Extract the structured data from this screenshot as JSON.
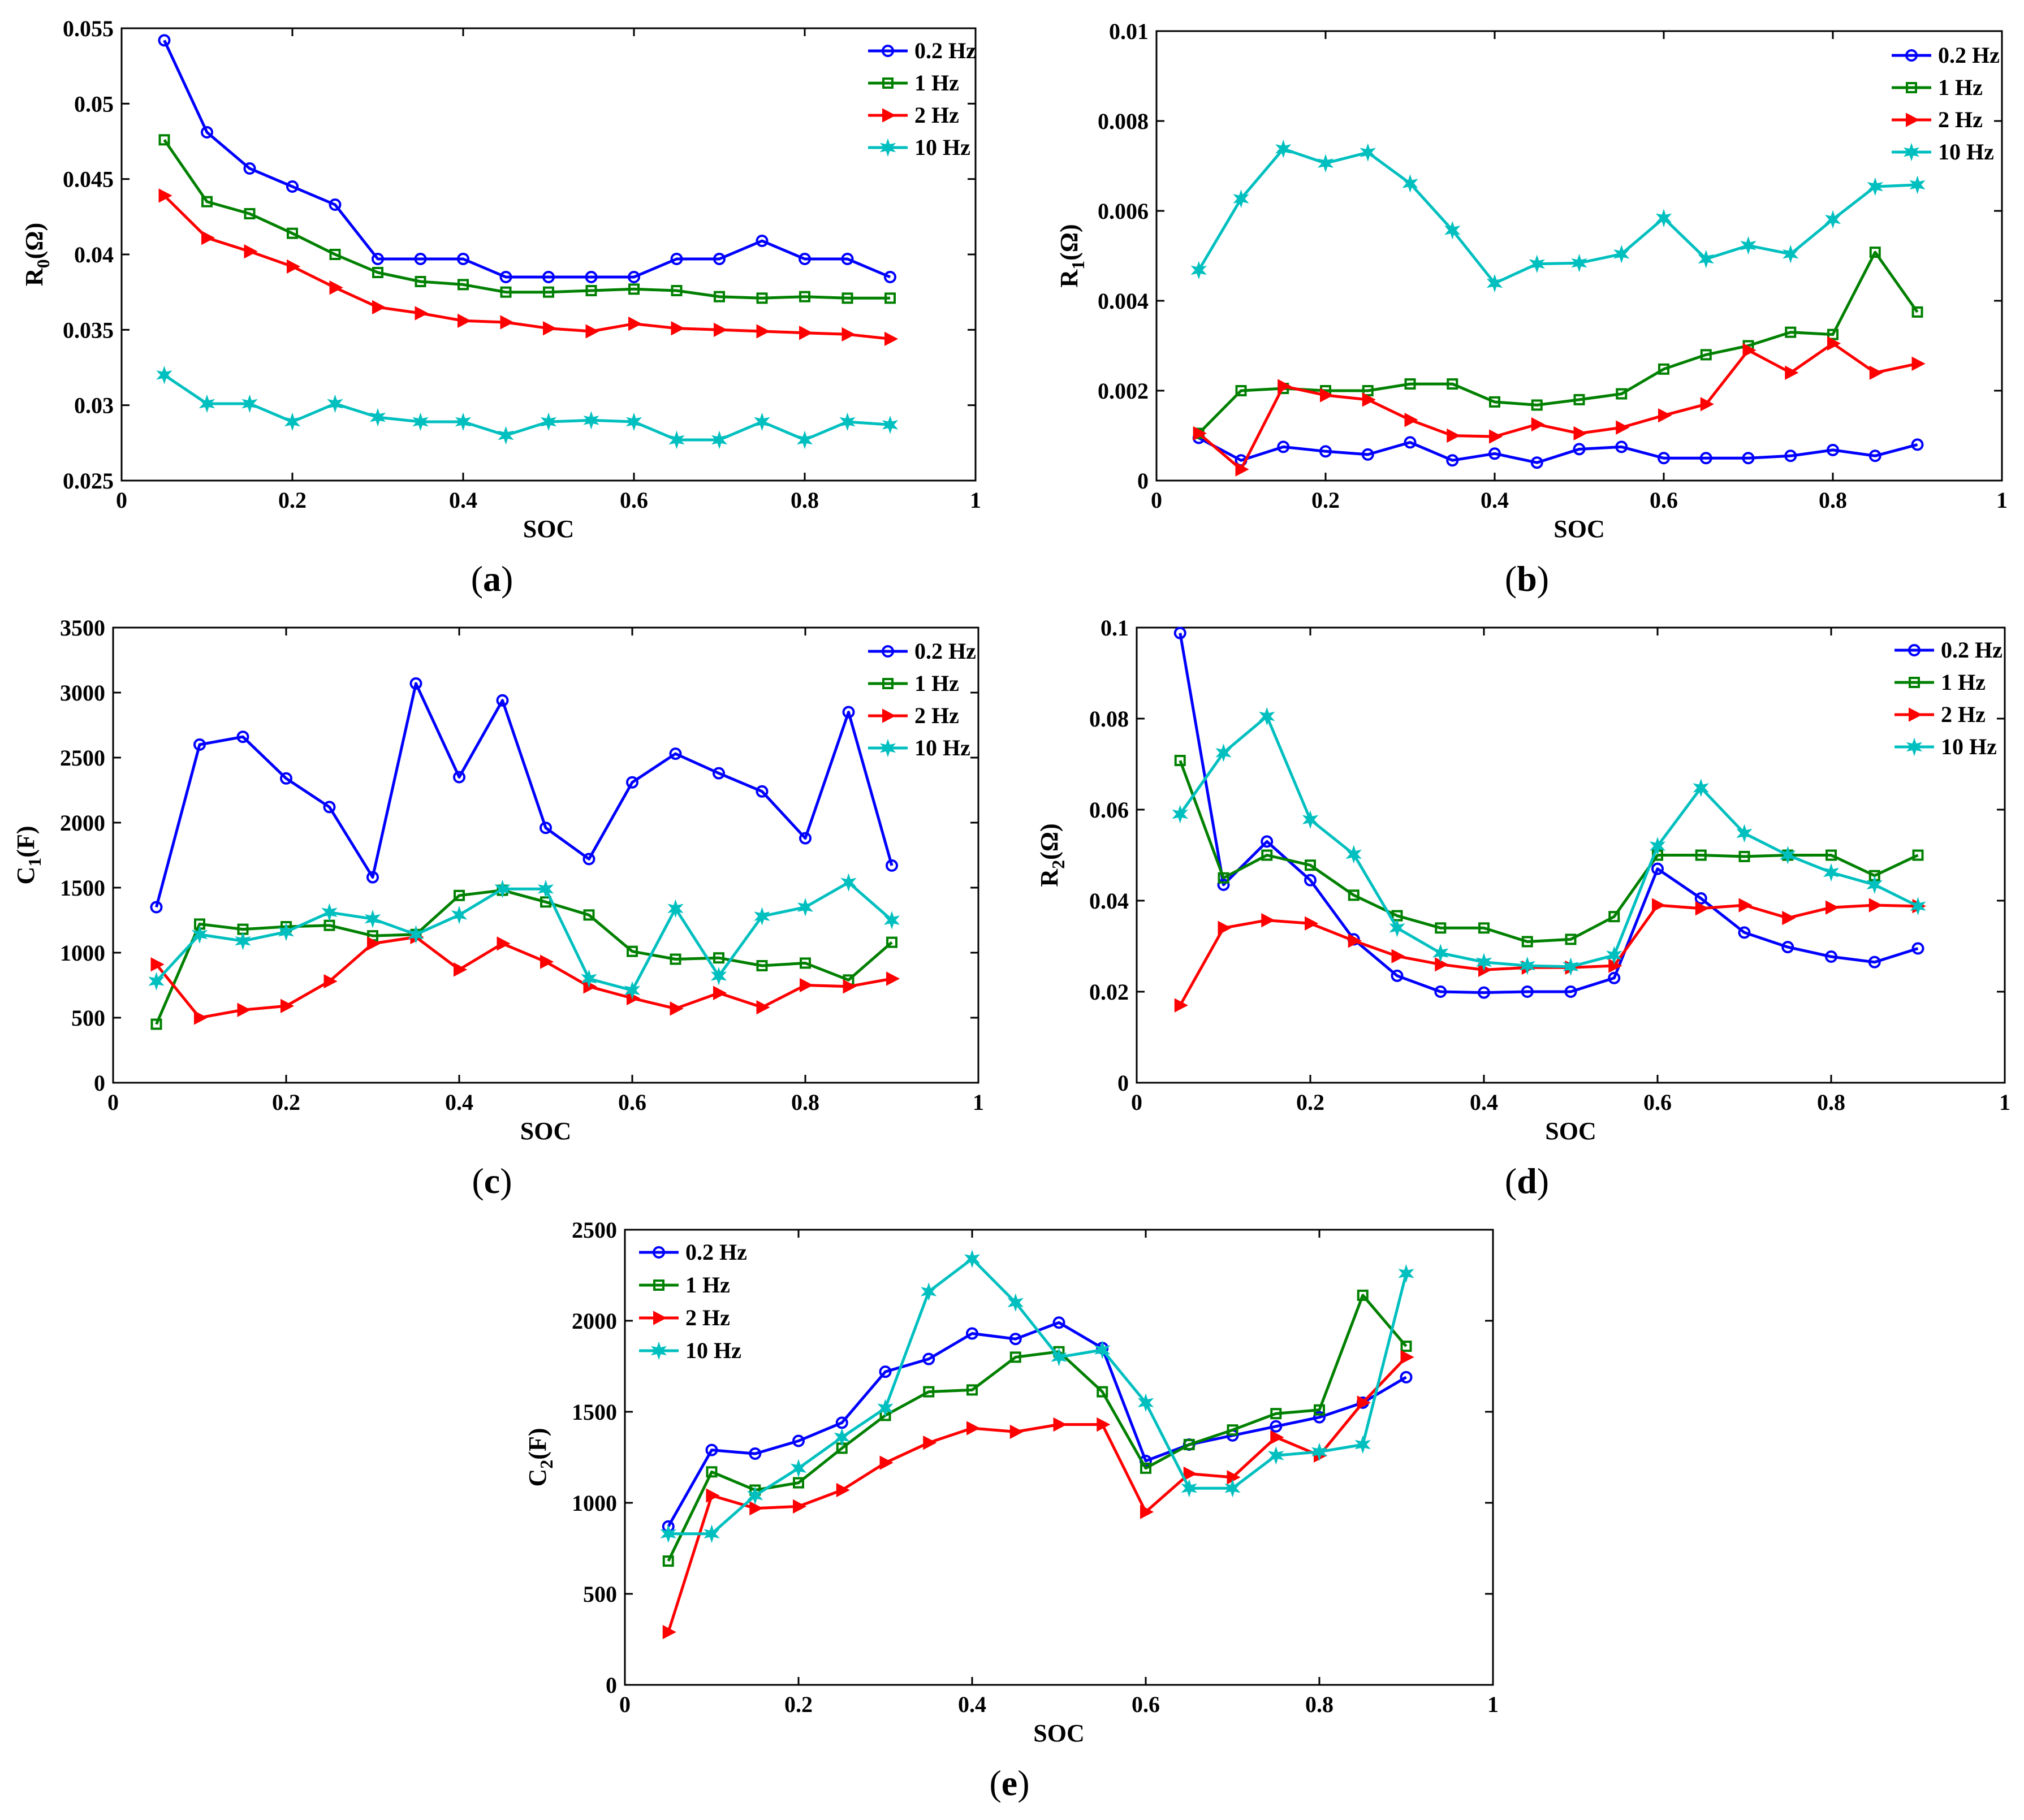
{
  "chart_data": [
    {
      "type": "line",
      "panel": "(a)",
      "caption_letter": "a",
      "xlabel": "SOC",
      "ylabel": "R0(Ω)",
      "ylabel_main": "R",
      "ylabel_sub": "0",
      "ylabel_unit": "(Ω)",
      "xlim": [
        0,
        1
      ],
      "ylim": [
        0.025,
        0.055
      ],
      "xticks": [
        0,
        0.2,
        0.4,
        0.6,
        0.8,
        1
      ],
      "xtick_labels": [
        "0",
        "0.2",
        "0.4",
        "0.6",
        "0.8",
        "1"
      ],
      "yticks": [
        0.025,
        0.03,
        0.035,
        0.04,
        0.045,
        0.05,
        0.055
      ],
      "ytick_labels": [
        "0.025",
        "0.03",
        "0.035",
        "0.04",
        "0.045",
        "0.05",
        "0.055"
      ],
      "legend_position": "top-right",
      "x": [
        0.05,
        0.1,
        0.15,
        0.2,
        0.25,
        0.3,
        0.35,
        0.4,
        0.45,
        0.5,
        0.55,
        0.6,
        0.65,
        0.7,
        0.75,
        0.8,
        0.85,
        0.9
      ],
      "series": [
        {
          "name": "0.2 Hz",
          "color": "#0000ff",
          "marker": "circle",
          "values": [
            0.0542,
            0.0481,
            0.0457,
            0.0445,
            0.0433,
            0.0397,
            0.0397,
            0.0397,
            0.0385,
            0.0385,
            0.0385,
            0.0385,
            0.0397,
            0.0397,
            0.0409,
            0.0397,
            0.0397,
            0.0385
          ]
        },
        {
          "name": "1 Hz",
          "color": "#008000",
          "marker": "square",
          "values": [
            0.0476,
            0.0435,
            0.0427,
            0.0414,
            0.04,
            0.0388,
            0.0382,
            0.038,
            0.0375,
            0.0375,
            0.0376,
            0.0377,
            0.0376,
            0.0372,
            0.0371,
            0.0372,
            0.0371,
            0.0371
          ]
        },
        {
          "name": "2 Hz",
          "color": "#ff0000",
          "marker": "triangle-right",
          "values": [
            0.0439,
            0.0411,
            0.0402,
            0.0392,
            0.0378,
            0.0365,
            0.0361,
            0.0356,
            0.0355,
            0.0351,
            0.0349,
            0.0354,
            0.0351,
            0.035,
            0.0349,
            0.0348,
            0.0347,
            0.0344
          ]
        },
        {
          "name": "10 Hz",
          "color": "#00bfbf",
          "marker": "star",
          "values": [
            0.032,
            0.0301,
            0.0301,
            0.0289,
            0.0301,
            0.0292,
            0.0289,
            0.0289,
            0.028,
            0.0289,
            0.029,
            0.0289,
            0.0277,
            0.0277,
            0.0289,
            0.0277,
            0.0289,
            0.0287
          ]
        }
      ]
    },
    {
      "type": "line",
      "panel": "(b)",
      "caption_letter": "b",
      "xlabel": "SOC",
      "ylabel": "R1(Ω)",
      "ylabel_main": "R",
      "ylabel_sub": "1",
      "ylabel_unit": "(Ω)",
      "xlim": [
        0,
        1
      ],
      "ylim": [
        0,
        0.01
      ],
      "xticks": [
        0,
        0.2,
        0.4,
        0.6,
        0.8,
        1
      ],
      "xtick_labels": [
        "0",
        "0.2",
        "0.4",
        "0.6",
        "0.8",
        "1"
      ],
      "yticks": [
        0,
        0.002,
        0.004,
        0.006,
        0.008,
        0.01
      ],
      "ytick_labels": [
        "0",
        "0.002",
        "0.004",
        "0.006",
        "0.008",
        "0.01"
      ],
      "legend_position": "top-right",
      "x": [
        0.05,
        0.1,
        0.15,
        0.2,
        0.25,
        0.3,
        0.35,
        0.4,
        0.45,
        0.5,
        0.55,
        0.6,
        0.65,
        0.7,
        0.75,
        0.8,
        0.85,
        0.9
      ],
      "series": [
        {
          "name": "0.2 Hz",
          "color": "#0000ff",
          "marker": "circle",
          "values": [
            0.00095,
            0.00045,
            0.00075,
            0.00065,
            0.00058,
            0.00085,
            0.00045,
            0.0006,
            0.0004,
            0.0007,
            0.00075,
            0.0005,
            0.0005,
            0.0005,
            0.00055,
            0.00068,
            0.00055,
            0.0008
          ]
        },
        {
          "name": "1 Hz",
          "color": "#008000",
          "marker": "square",
          "values": [
            0.00105,
            0.002,
            0.00205,
            0.002,
            0.002,
            0.00215,
            0.00215,
            0.00175,
            0.00168,
            0.0018,
            0.00193,
            0.00248,
            0.0028,
            0.003,
            0.0033,
            0.00325,
            0.00508,
            0.00375
          ]
        },
        {
          "name": "2 Hz",
          "color": "#ff0000",
          "marker": "triangle-right",
          "values": [
            0.00105,
            0.00025,
            0.0021,
            0.0019,
            0.0018,
            0.00135,
            0.001,
            0.00098,
            0.00125,
            0.00105,
            0.00118,
            0.00145,
            0.0017,
            0.0029,
            0.0024,
            0.00305,
            0.0024,
            0.0026
          ]
        },
        {
          "name": "10 Hz",
          "color": "#00bfbf",
          "marker": "star",
          "values": [
            0.00468,
            0.00627,
            0.00738,
            0.00706,
            0.0073,
            0.00661,
            0.00557,
            0.00439,
            0.00482,
            0.00484,
            0.00504,
            0.00584,
            0.00493,
            0.00523,
            0.00504,
            0.00581,
            0.00654,
            0.00658
          ]
        }
      ]
    },
    {
      "type": "line",
      "panel": "(c)",
      "caption_letter": "c",
      "xlabel": "SOC",
      "ylabel": "C1(F)",
      "ylabel_main": "C",
      "ylabel_sub": "1",
      "ylabel_unit": "(F)",
      "xlim": [
        0,
        1
      ],
      "ylim": [
        0,
        3500
      ],
      "xticks": [
        0,
        0.2,
        0.4,
        0.6,
        0.8,
        1
      ],
      "xtick_labels": [
        "0",
        "0.2",
        "0.4",
        "0.6",
        "0.8",
        "1"
      ],
      "yticks": [
        0,
        500,
        1000,
        1500,
        2000,
        2500,
        3000,
        3500
      ],
      "ytick_labels": [
        "0",
        "500",
        "1000",
        "1500",
        "2000",
        "2500",
        "3000",
        "3500"
      ],
      "legend_position": "top-right",
      "x": [
        0.05,
        0.1,
        0.15,
        0.2,
        0.25,
        0.3,
        0.35,
        0.4,
        0.45,
        0.5,
        0.55,
        0.6,
        0.65,
        0.7,
        0.75,
        0.8,
        0.85,
        0.9
      ],
      "series": [
        {
          "name": "0.2 Hz",
          "color": "#0000ff",
          "marker": "circle",
          "values": [
            1350,
            2600,
            2660,
            2340,
            2120,
            1580,
            3070,
            2350,
            2940,
            1960,
            1720,
            2310,
            2530,
            2380,
            2240,
            1880,
            2850,
            1670
          ]
        },
        {
          "name": "1 Hz",
          "color": "#008000",
          "marker": "square",
          "values": [
            450,
            1220,
            1180,
            1200,
            1210,
            1130,
            1140,
            1440,
            1480,
            1390,
            1290,
            1010,
            950,
            960,
            900,
            920,
            790,
            1080
          ]
        },
        {
          "name": "2 Hz",
          "color": "#ff0000",
          "marker": "triangle-right",
          "values": [
            910,
            500,
            560,
            590,
            780,
            1070,
            1120,
            870,
            1070,
            930,
            740,
            650,
            570,
            690,
            580,
            750,
            740,
            800
          ]
        },
        {
          "name": "10 Hz",
          "color": "#00bfbf",
          "marker": "star",
          "values": [
            780,
            1140,
            1090,
            1160,
            1310,
            1260,
            1140,
            1290,
            1490,
            1490,
            800,
            710,
            1340,
            820,
            1280,
            1350,
            1540,
            1250
          ]
        }
      ]
    },
    {
      "type": "line",
      "panel": "(d)",
      "caption_letter": "d",
      "xlabel": "SOC",
      "ylabel": "R2(Ω)",
      "ylabel_main": "R",
      "ylabel_sub": "2",
      "ylabel_unit": "(Ω)",
      "xlim": [
        0,
        1
      ],
      "ylim": [
        0,
        0.1
      ],
      "xticks": [
        0,
        0.2,
        0.4,
        0.6,
        0.8,
        1
      ],
      "xtick_labels": [
        "0",
        "0.2",
        "0.4",
        "0.6",
        "0.8",
        "1"
      ],
      "yticks": [
        0,
        0.02,
        0.04,
        0.06,
        0.08,
        0.1
      ],
      "ytick_labels": [
        "0",
        "0.02",
        "0.04",
        "0.06",
        "0.08",
        "0.1"
      ],
      "legend_position": "top-right",
      "x": [
        0.05,
        0.1,
        0.15,
        0.2,
        0.25,
        0.3,
        0.35,
        0.4,
        0.45,
        0.5,
        0.55,
        0.6,
        0.65,
        0.7,
        0.75,
        0.8,
        0.85,
        0.9
      ],
      "series": [
        {
          "name": "0.2 Hz",
          "color": "#0000ff",
          "marker": "circle",
          "values": [
            0.0988,
            0.0435,
            0.053,
            0.0445,
            0.0315,
            0.0235,
            0.02,
            0.0198,
            0.02,
            0.02,
            0.023,
            0.047,
            0.0405,
            0.033,
            0.0298,
            0.0277,
            0.0265,
            0.0295
          ]
        },
        {
          "name": "1 Hz",
          "color": "#008000",
          "marker": "square",
          "values": [
            0.0708,
            0.045,
            0.05,
            0.0478,
            0.0412,
            0.0367,
            0.034,
            0.034,
            0.031,
            0.0315,
            0.0365,
            0.05,
            0.05,
            0.0497,
            0.05,
            0.05,
            0.0455,
            0.05
          ]
        },
        {
          "name": "2 Hz",
          "color": "#ff0000",
          "marker": "triangle-right",
          "values": [
            0.017,
            0.034,
            0.0357,
            0.035,
            0.0312,
            0.0278,
            0.026,
            0.0248,
            0.0253,
            0.0253,
            0.0257,
            0.039,
            0.0383,
            0.039,
            0.0362,
            0.0385,
            0.039,
            0.0388
          ]
        },
        {
          "name": "10 Hz",
          "color": "#00bfbf",
          "marker": "star",
          "values": [
            0.059,
            0.0725,
            0.0805,
            0.0578,
            0.0502,
            0.034,
            0.0285,
            0.0265,
            0.0257,
            0.0255,
            0.028,
            0.052,
            0.0648,
            0.0548,
            0.05,
            0.0462,
            0.0435,
            0.0388
          ]
        }
      ]
    },
    {
      "type": "line",
      "panel": "(e)",
      "caption_letter": "e",
      "xlabel": "SOC",
      "ylabel": "C2(F)",
      "ylabel_main": "C",
      "ylabel_sub": "2",
      "ylabel_unit": "(F)",
      "xlim": [
        0,
        1
      ],
      "ylim": [
        0,
        2500
      ],
      "xticks": [
        0,
        0.2,
        0.4,
        0.6,
        0.8,
        1
      ],
      "xtick_labels": [
        "0",
        "0.2",
        "0.4",
        "0.6",
        "0.8",
        "1"
      ],
      "yticks": [
        0,
        500,
        1000,
        1500,
        2000,
        2500
      ],
      "ytick_labels": [
        "0",
        "500",
        "1000",
        "1500",
        "2000",
        "2500"
      ],
      "legend_position": "top-left",
      "x": [
        0.05,
        0.1,
        0.15,
        0.2,
        0.25,
        0.3,
        0.35,
        0.4,
        0.45,
        0.5,
        0.55,
        0.6,
        0.65,
        0.7,
        0.75,
        0.8,
        0.85,
        0.9
      ],
      "series": [
        {
          "name": "0.2 Hz",
          "color": "#0000ff",
          "marker": "circle",
          "values": [
            870,
            1290,
            1270,
            1340,
            1440,
            1720,
            1790,
            1930,
            1900,
            1990,
            1850,
            1230,
            1320,
            1370,
            1420,
            1470,
            1550,
            1690
          ]
        },
        {
          "name": "1 Hz",
          "color": "#008000",
          "marker": "square",
          "values": [
            680,
            1170,
            1070,
            1110,
            1300,
            1480,
            1610,
            1620,
            1800,
            1830,
            1610,
            1190,
            1320,
            1400,
            1490,
            1510,
            2140,
            1860
          ]
        },
        {
          "name": "2 Hz",
          "color": "#ff0000",
          "marker": "triangle-right",
          "values": [
            290,
            1040,
            970,
            980,
            1070,
            1220,
            1330,
            1410,
            1390,
            1430,
            1430,
            950,
            1160,
            1140,
            1360,
            1260,
            1550,
            1800
          ]
        },
        {
          "name": "10 Hz",
          "color": "#00bfbf",
          "marker": "star",
          "values": [
            830,
            830,
            1040,
            1190,
            1360,
            1520,
            2160,
            2340,
            2100,
            1800,
            1840,
            1550,
            1080,
            1080,
            1260,
            1280,
            1320,
            2260
          ]
        }
      ]
    }
  ]
}
